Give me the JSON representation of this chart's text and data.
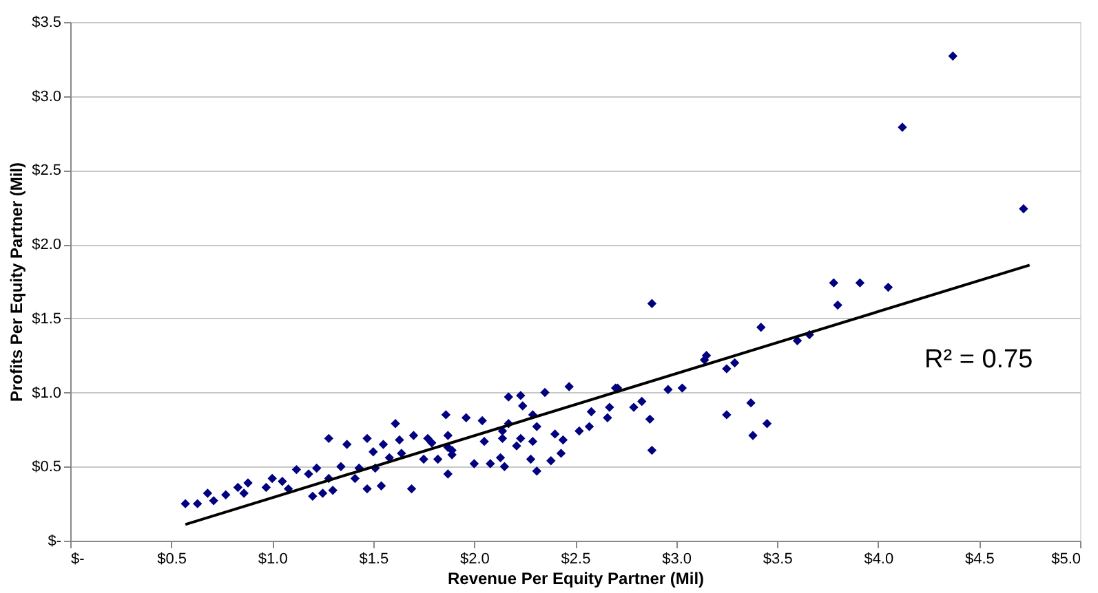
{
  "chart_data": {
    "type": "scatter",
    "xlabel": "Revenue Per Equity Partner (Mil)",
    "ylabel": "Profits Per Equity Partner (Mil)",
    "xlim": [
      0,
      5
    ],
    "ylim": [
      0,
      3.5
    ],
    "xticks": [
      {
        "value": 0,
        "label": "$-"
      },
      {
        "value": 0.5,
        "label": "$0.5"
      },
      {
        "value": 1,
        "label": "$1.0"
      },
      {
        "value": 1.5,
        "label": "$1.5"
      },
      {
        "value": 2,
        "label": "$2.0"
      },
      {
        "value": 2.5,
        "label": "$2.5"
      },
      {
        "value": 3,
        "label": "$3.0"
      },
      {
        "value": 3.5,
        "label": "$3.5"
      },
      {
        "value": 4,
        "label": "$4.0"
      },
      {
        "value": 4.5,
        "label": "$4.5"
      },
      {
        "value": 5,
        "label": "$5.0"
      }
    ],
    "yticks": [
      {
        "value": 0,
        "label": "$-"
      },
      {
        "value": 0.5,
        "label": "$0.5"
      },
      {
        "value": 1,
        "label": "$1.0"
      },
      {
        "value": 1.5,
        "label": "$1.5"
      },
      {
        "value": 2,
        "label": "$2.0"
      },
      {
        "value": 2.5,
        "label": "$2.5"
      },
      {
        "value": 3,
        "label": "$3.0"
      },
      {
        "value": 3.5,
        "label": "$3.5"
      }
    ],
    "grid": "y",
    "marker": "diamond",
    "annotations": [
      "R² = 0.75"
    ],
    "series": [
      {
        "color": "#000080",
        "x": [
          4.37,
          4.12,
          4.72,
          3.78,
          3.91,
          4.05,
          3.8,
          2.88,
          3.42,
          3.6,
          3.66,
          3.15,
          3.14,
          3.25,
          3.29,
          2.96,
          3.03,
          2.79,
          2.83,
          2.87,
          2.88,
          3.25,
          3.37,
          3.38,
          3.45,
          2.71,
          2.47,
          2.35,
          2.7,
          2.17,
          2.23,
          2.24,
          1.96,
          2.04,
          2.29,
          2.17,
          2.31,
          2.14,
          2.4,
          2.58,
          2.67,
          2.66,
          2.52,
          2.57,
          2.44,
          2.05,
          2.14,
          2.23,
          2.29,
          2.21,
          1.87,
          1.89,
          2.0,
          2.08,
          2.13,
          2.15,
          2.28,
          2.38,
          2.43,
          2.31,
          1.87,
          0.57,
          0.63,
          0.68,
          0.71,
          0.77,
          0.83,
          0.88,
          0.86,
          0.97,
          1.0,
          1.05,
          1.08,
          1.12,
          1.18,
          1.22,
          1.2,
          1.25,
          1.28,
          1.28,
          1.3,
          1.34,
          1.37,
          1.41,
          1.43,
          1.47,
          1.47,
          1.51,
          1.5,
          1.54,
          1.55,
          1.58,
          1.61,
          1.63,
          1.64,
          1.7,
          1.69,
          1.75,
          1.77,
          1.79,
          1.82,
          1.86,
          1.87,
          1.89
        ],
        "values": [
          3.27,
          2.79,
          2.24,
          1.74,
          1.74,
          1.71,
          1.59,
          1.6,
          1.44,
          1.35,
          1.39,
          1.25,
          1.22,
          1.16,
          1.2,
          1.02,
          1.03,
          0.9,
          0.94,
          0.82,
          0.61,
          0.85,
          0.93,
          0.71,
          0.79,
          1.03,
          1.04,
          1.0,
          1.03,
          0.97,
          0.98,
          0.91,
          0.83,
          0.81,
          0.85,
          0.79,
          0.77,
          0.74,
          0.72,
          0.87,
          0.9,
          0.83,
          0.74,
          0.77,
          0.68,
          0.67,
          0.69,
          0.69,
          0.67,
          0.64,
          0.63,
          0.58,
          0.52,
          0.52,
          0.56,
          0.5,
          0.55,
          0.54,
          0.59,
          0.47,
          0.45,
          0.25,
          0.25,
          0.32,
          0.27,
          0.31,
          0.36,
          0.39,
          0.32,
          0.36,
          0.42,
          0.4,
          0.35,
          0.48,
          0.45,
          0.49,
          0.3,
          0.32,
          0.42,
          0.69,
          0.34,
          0.5,
          0.65,
          0.42,
          0.49,
          0.35,
          0.69,
          0.49,
          0.6,
          0.37,
          0.65,
          0.56,
          0.79,
          0.68,
          0.59,
          0.71,
          0.35,
          0.55,
          0.69,
          0.66,
          0.55,
          0.85,
          0.71,
          0.61
        ]
      },
      {
        "type": "line",
        "color": "#000000",
        "marker": "none",
        "line_style": "solid",
        "x": [
          0.57,
          4.75
        ],
        "values": [
          0.11,
          1.86
        ]
      }
    ]
  }
}
